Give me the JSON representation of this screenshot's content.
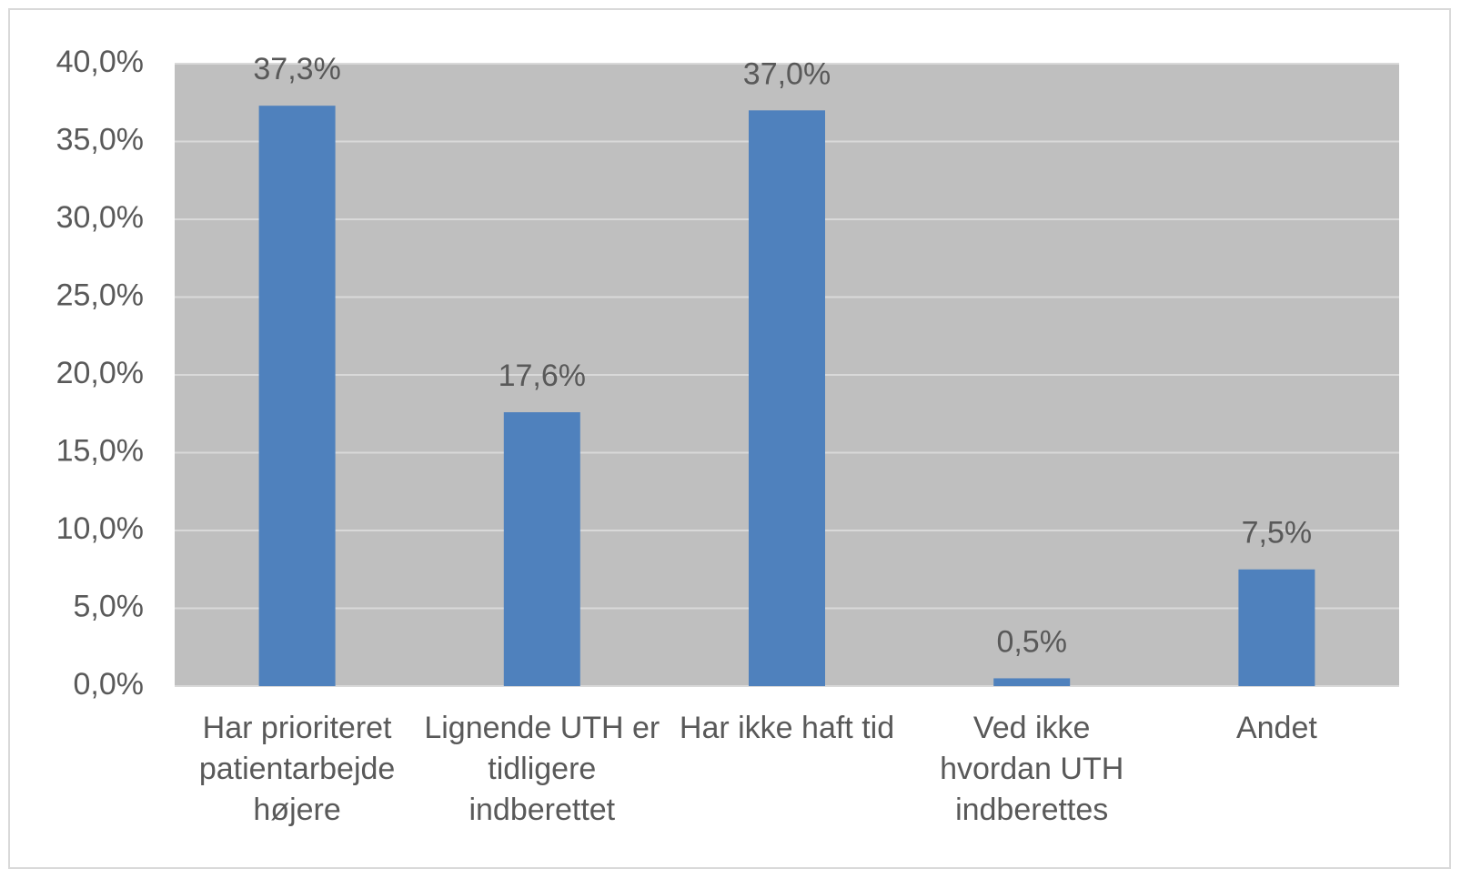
{
  "chart_data": {
    "type": "bar",
    "categories": [
      "Har prioriteret patientarbejde højere",
      "Lignende UTH er tidligere indberettet",
      "Har ikke haft tid",
      "Ved ikke hvordan UTH indberettes",
      "Andet"
    ],
    "values": [
      37.3,
      17.6,
      37.0,
      0.5,
      7.5
    ],
    "value_labels": [
      "37,3%",
      "17,6%",
      "37,0%",
      "0,5%",
      "7,5%"
    ],
    "color": "#4f81bd",
    "ylim": [
      0,
      40
    ],
    "yticks": [
      {
        "value": 0,
        "label": "0,0%"
      },
      {
        "value": 5,
        "label": "5,0%"
      },
      {
        "value": 10,
        "label": "10,0%"
      },
      {
        "value": 15,
        "label": "15,0%"
      },
      {
        "value": 20,
        "label": "20,0%"
      },
      {
        "value": 25,
        "label": "25,0%"
      },
      {
        "value": 30,
        "label": "30,0%"
      },
      {
        "value": 35,
        "label": "35,0%"
      },
      {
        "value": 40,
        "label": "40,0%"
      }
    ],
    "grid": true
  }
}
